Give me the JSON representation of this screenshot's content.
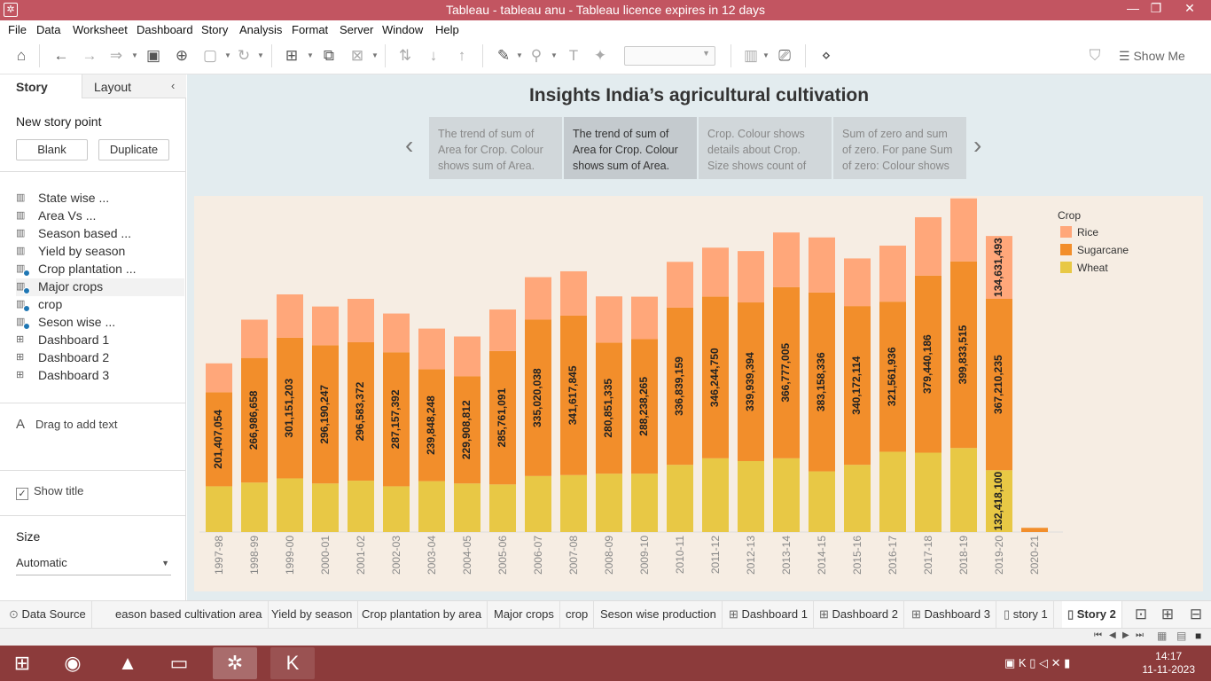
{
  "window": {
    "title": "Tableau - tableau anu - Tableau licence expires in 12 days",
    "minimize": "—",
    "restore": "❐",
    "close": "✕"
  },
  "menu": [
    "File",
    "Data",
    "Worksheet",
    "Dashboard",
    "Story",
    "Analysis",
    "Format",
    "Server",
    "Window",
    "Help"
  ],
  "toolbar": {
    "show_me": "Show Me"
  },
  "sidebar": {
    "tab_story": "Story",
    "tab_layout": "Layout",
    "new_story_point": "New story point",
    "blank_button": "Blank",
    "duplicate_button": "Duplicate",
    "sheets": [
      {
        "label": "State wise ...",
        "type": "sheet",
        "used": false
      },
      {
        "label": "Area Vs ...",
        "type": "sheet",
        "used": false
      },
      {
        "label": "Season based ...",
        "type": "sheet",
        "used": false
      },
      {
        "label": "Yield by season",
        "type": "sheet",
        "used": false
      },
      {
        "label": "Crop plantation ...",
        "type": "sheet",
        "used": true
      },
      {
        "label": "Major crops",
        "type": "sheet",
        "used": true
      },
      {
        "label": "crop",
        "type": "sheet",
        "used": true
      },
      {
        "label": "Seson wise ...",
        "type": "sheet",
        "used": true
      },
      {
        "label": "Dashboard 1",
        "type": "dashboard",
        "used": false
      },
      {
        "label": "Dashboard 2",
        "type": "dashboard",
        "used": false
      },
      {
        "label": "Dashboard 3",
        "type": "dashboard",
        "used": false
      }
    ],
    "drag_text": "Drag to add text",
    "drag_text_icon": "A",
    "show_title": "Show title",
    "size_label": "Size",
    "size_value": "Automatic"
  },
  "story": {
    "title": "Insights India’s agricultural cultivation",
    "points": [
      {
        "text": "The trend of sum of Area for Crop.  Colour shows sum of Area.",
        "active": false
      },
      {
        "text": "The trend of sum of Area for Crop.  Colour shows sum of Area.",
        "active": true
      },
      {
        "text": "Crop.  Colour shows details about Crop. Size shows count of",
        "active": false
      },
      {
        "text": "Sum of zero and sum of zero.  For pane Sum of zero:  Colour shows",
        "active": false
      }
    ]
  },
  "chart_data": {
    "type": "bar",
    "stacked": true,
    "categories": [
      "1997-98",
      "1998-99",
      "1999-00",
      "2000-01",
      "2001-02",
      "2002-03",
      "2003-04",
      "2004-05",
      "2005-06",
      "2006-07",
      "2007-08",
      "2008-09",
      "2009-10",
      "2010-11",
      "2011-12",
      "2012-13",
      "2013-14",
      "2014-15",
      "2015-16",
      "2016-17",
      "2017-18",
      "2018-19",
      "2019-20",
      "2020-21"
    ],
    "legend_title": "Crop",
    "legend_position": "top-right",
    "grid": false,
    "series": [
      {
        "name": "Wheat",
        "color": "#e8c845",
        "values": [
          98000000,
          106000000,
          115000000,
          104000000,
          110000000,
          98000000,
          109000000,
          104000000,
          102000000,
          120000000,
          122000000,
          125000000,
          125000000,
          144000000,
          158000000,
          152000000,
          158000000,
          130000000,
          144000000,
          172000000,
          170000000,
          180000000,
          132418100,
          0
        ]
      },
      {
        "name": "Sugarcane",
        "color": "#f28e2b",
        "values": [
          201407054,
          266986658,
          301151203,
          296190247,
          296583372,
          287157392,
          239848248,
          229908812,
          285761091,
          335020038,
          341617845,
          280851335,
          288238265,
          336839159,
          346244750,
          339939394,
          366777005,
          383158336,
          340172114,
          321561936,
          379440186,
          399833515,
          367210235,
          9000000
        ]
      },
      {
        "name": "Rice",
        "color": "#ffa77a",
        "values": [
          62000000,
          82000000,
          93000000,
          83000000,
          93000000,
          83000000,
          87000000,
          85000000,
          89000000,
          91000000,
          95000000,
          99000000,
          91000000,
          98000000,
          105000000,
          110000000,
          117000000,
          118000000,
          102000000,
          120000000,
          125000000,
          135000000,
          134631493,
          0
        ]
      }
    ],
    "data_labels": {
      "Sugarcane": [
        "201,407,054",
        "266,986,658",
        "301,151,203",
        "296,190,247",
        "296,583,372",
        "287,157,392",
        "239,848,248",
        "229,908,812",
        "285,761,091",
        "335,020,038",
        "341,617,845",
        "280,851,335",
        "288,238,265",
        "336,839,159",
        "346,244,750",
        "339,939,394",
        "366,777,005",
        "383,158,336",
        "340,172,114",
        "321,561,936",
        "379,440,186",
        "399,833,515",
        "367,210,235",
        ""
      ],
      "Rice": [
        "",
        "",
        "",
        "",
        "",
        "",
        "",
        "",
        "",
        "",
        "",
        "",
        "",
        "",
        "",
        "",
        "",
        "",
        "",
        "",
        "",
        "",
        "134,631,493",
        ""
      ],
      "Wheat": [
        "",
        "",
        "",
        "",
        "",
        "",
        "",
        "",
        "",
        "",
        "",
        "",
        "",
        "",
        "",
        "",
        "",
        "",
        "",
        "",
        "",
        "",
        "132,418,100",
        ""
      ]
    },
    "ylim": [
      0,
      720000000
    ]
  },
  "bottom_tabs": {
    "data_source": "Data Source",
    "tabs": [
      "eason based cultivation area",
      "Yield by season",
      "Crop plantation by area",
      "Major crops",
      "crop",
      "Seson wise production",
      "Dashboard 1",
      "Dashboard 2",
      "Dashboard 3",
      "story 1",
      "Story 2"
    ],
    "active": "Story 2"
  },
  "taskbar": {
    "time": "14:17",
    "date": "11-11-2023",
    "pinned": [
      "chrome",
      "vlc",
      "file-explorer",
      "tableau",
      "k7"
    ]
  }
}
